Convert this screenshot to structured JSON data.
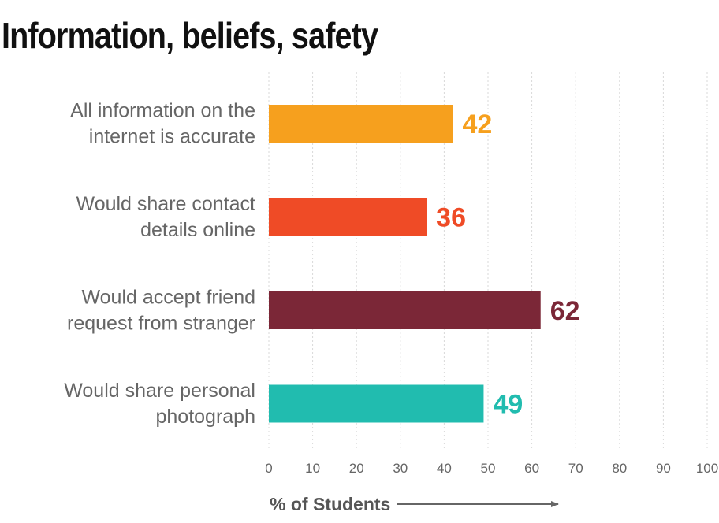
{
  "title": "Information, beliefs, safety",
  "chart_data": {
    "type": "bar",
    "orientation": "horizontal",
    "title": "Information, beliefs, safety",
    "xlabel": "% of Students",
    "ylabel": "",
    "categories": [
      [
        "All information on the",
        "internet is accurate"
      ],
      [
        "Would share contact",
        "details online"
      ],
      [
        "Would accept friend",
        "request from stranger"
      ],
      [
        "Would share personal",
        "photograph"
      ]
    ],
    "values": [
      42,
      36,
      62,
      49
    ],
    "colors": [
      "#F6A01E",
      "#EF4B26",
      "#7B2737",
      "#21BCAF"
    ],
    "xlim": [
      0,
      100
    ],
    "xticks": [
      0,
      10,
      20,
      30,
      40,
      50,
      60,
      70,
      80,
      90,
      100
    ],
    "grid": true,
    "data_labels": true
  }
}
